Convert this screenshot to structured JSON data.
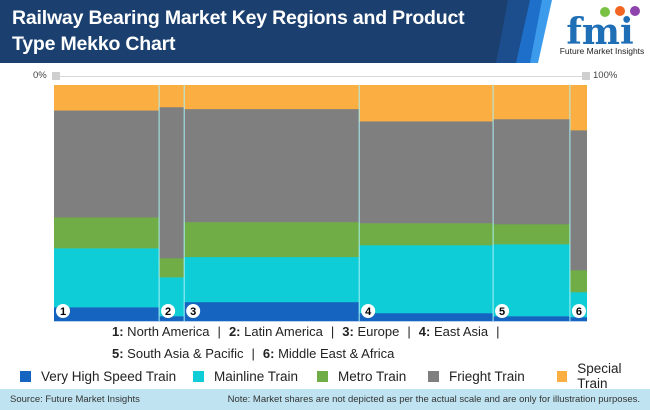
{
  "header": {
    "title_line1": "Railway Bearing Market Key Regions and Product",
    "title_line2": "Type Mekko Chart",
    "logo_letters": "fmi",
    "logo_text": "Future Market Insights"
  },
  "colors": {
    "header_navy": "#1b3f6e",
    "very_high_speed": "#1565c0",
    "mainline": "#0fcdd6",
    "metro": "#70ad47",
    "freight": "#7f7f7f",
    "special": "#fbae42",
    "column_border": "#a8f0f4",
    "footer_bg": "#bfe3f0"
  },
  "chart_data": {
    "type": "mekko",
    "title": "Railway Bearing Market Key Regions and Product Type Mekko Chart",
    "x_axis": {
      "min_label": "0%",
      "max_label": "100%"
    },
    "columns": [
      {
        "id": "1",
        "name": "North America",
        "width_pct": 19.7
      },
      {
        "id": "2",
        "name": "Latin America",
        "width_pct": 4.7
      },
      {
        "id": "3",
        "name": "Europe",
        "width_pct": 32.8
      },
      {
        "id": "4",
        "name": "East Asia",
        "width_pct": 25.1
      },
      {
        "id": "5",
        "name": "South Asia & Pacific",
        "width_pct": 14.4
      },
      {
        "id": "6",
        "name": "Middle East & Africa",
        "width_pct": 3.2
      }
    ],
    "series": [
      {
        "name": "Very High Speed Train",
        "color_key": "very_high_speed",
        "values": [
          5.9,
          2.1,
          8.1,
          3.4,
          2.1,
          1.7
        ]
      },
      {
        "name": "Mainline Train",
        "color_key": "mainline",
        "values": [
          25.0,
          16.5,
          19.1,
          28.8,
          30.5,
          10.6
        ]
      },
      {
        "name": "Metro Train",
        "color_key": "metro",
        "values": [
          13.1,
          8.1,
          14.8,
          9.3,
          8.5,
          9.3
        ]
      },
      {
        "name": "Frieght Train",
        "color_key": "freight",
        "values": [
          45.3,
          64.0,
          47.9,
          43.2,
          44.5,
          59.3
        ]
      },
      {
        "name": "Special Train",
        "color_key": "special",
        "values": [
          10.7,
          9.3,
          10.1,
          15.3,
          14.4,
          19.1
        ]
      }
    ],
    "legend_position": "bottom"
  },
  "regions": {
    "line1": [
      {
        "num": "1:",
        "name": "North America"
      },
      {
        "num": "2:",
        "name": "Latin America"
      },
      {
        "num": "3:",
        "name": "Europe"
      },
      {
        "num": "4:",
        "name": "East Asia"
      }
    ],
    "line2": [
      {
        "num": "5:",
        "name": "South Asia & Pacific"
      },
      {
        "num": "6:",
        "name": " Middle East & Africa"
      }
    ],
    "separator": "|"
  },
  "legend": [
    {
      "label": "Very High Speed Train",
      "color": "#1565c0"
    },
    {
      "label": "Mainline Train",
      "color": "#0fcdd6"
    },
    {
      "label": "Metro Train",
      "color": "#70ad47"
    },
    {
      "label": "Frieght Train",
      "color": "#7f7f7f"
    },
    {
      "label": "Special Train",
      "color": "#fbae42"
    }
  ],
  "footer": {
    "source": "Source: Future Market Insights",
    "note": "Note: Market shares are not depicted as per the actual scale and are only for illustration purposes."
  }
}
